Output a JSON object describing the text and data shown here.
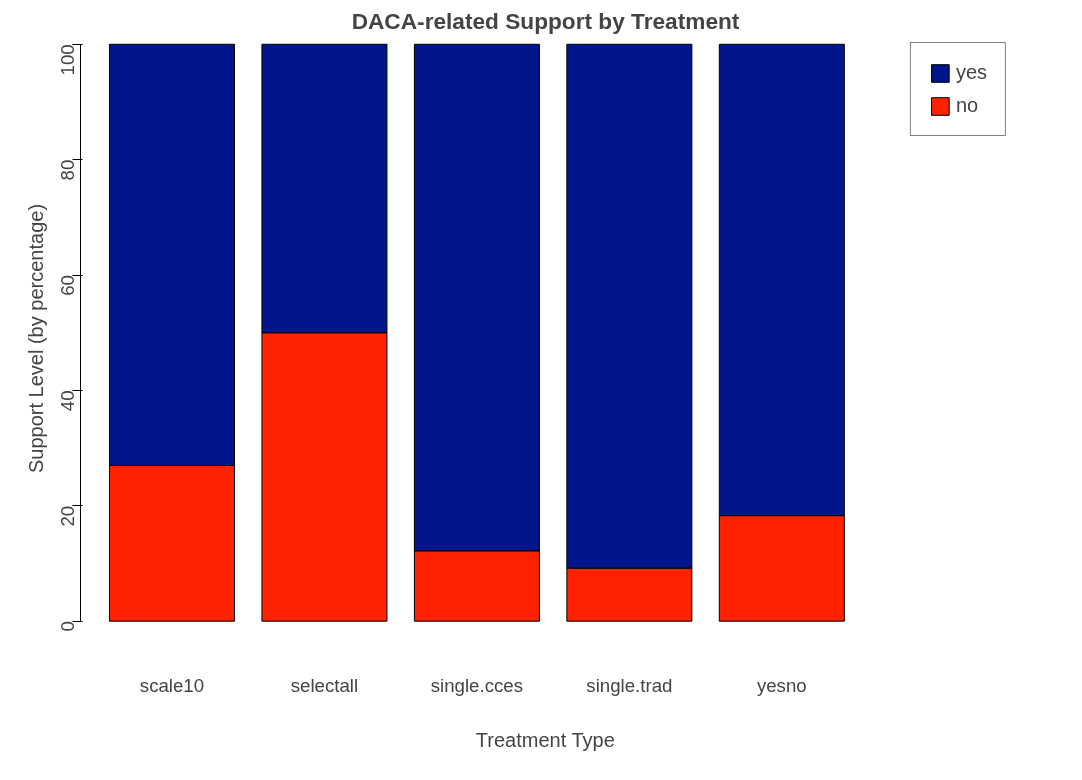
{
  "chart_data": {
    "type": "bar",
    "title": "DACA-related Support by Treatment",
    "xlabel": "Treatment Type",
    "ylabel": "Support Level (by percentage)",
    "categories": [
      "scale10",
      "selectall",
      "single.cces",
      "single.trad",
      "yesno"
    ],
    "stacked": true,
    "series": [
      {
        "name": "no",
        "color": "#ff2200",
        "values": [
          27,
          50,
          12.2,
          9.2,
          18.3
        ]
      },
      {
        "name": "yes",
        "color": "#00168a",
        "values": [
          73,
          50,
          87.8,
          90.8,
          81.7
        ]
      }
    ],
    "ylim": [
      0,
      100
    ],
    "yticks": [
      0,
      20,
      40,
      60,
      80,
      100
    ],
    "grid": false,
    "legend": "top right"
  }
}
